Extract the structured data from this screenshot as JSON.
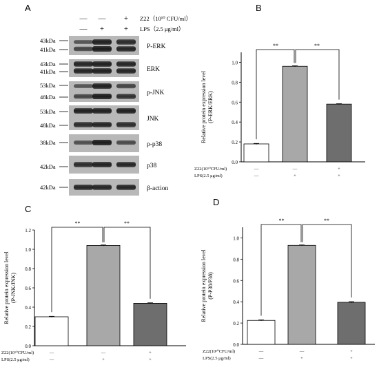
{
  "panel_labels": [
    "A",
    "B",
    "C",
    "D"
  ],
  "blot_panel": {
    "header": {
      "row1_label": "Z22（10¹⁰ CFU/ml）",
      "row2_label": "LPS（2.5 μg/ml）",
      "row1_signs": [
        "—",
        "—",
        "+"
      ],
      "row2_signs": [
        "—",
        "+",
        "+"
      ]
    },
    "blots": [
      {
        "name": "P-ERK",
        "markers": [
          "43kDa",
          "41kDa"
        ]
      },
      {
        "name": "ERK",
        "markers": [
          "43kDa",
          "41kDa"
        ]
      },
      {
        "name": "p-JNK",
        "markers": [
          "53kDa",
          "48kDa"
        ]
      },
      {
        "name": "JNK",
        "markers": [
          "53kDa",
          "48kDa"
        ]
      },
      {
        "name": "p-p38",
        "markers": [
          "38kDa"
        ]
      },
      {
        "name": "p38",
        "markers": [
          "42kDa"
        ]
      },
      {
        "name": "β-action",
        "markers": [
          "42kDa"
        ]
      }
    ]
  },
  "chart_data": [
    {
      "panel": "B",
      "type": "bar",
      "ylabel": "Relative protein expression level (P-ERK/ERK)",
      "ylim": [
        0,
        1.1
      ],
      "yticks": [
        "0.0",
        "0.2",
        "0.4",
        "0.6",
        "0.8",
        "1.0"
      ],
      "values": [
        0.18,
        0.96,
        0.58
      ],
      "errors": [
        0.005,
        0.005,
        0.004
      ],
      "bar_colors": [
        "#ffffff",
        "#a8a8a8",
        "#6e6e6e"
      ],
      "significance": [
        "**",
        "**"
      ],
      "condition_labels": [
        "Z22(10¹⁰CFU/ml)",
        "LPS(2.5 μg/ml)"
      ],
      "z22_signs": [
        "—",
        "—",
        "+"
      ],
      "lps_signs": [
        "—",
        "+",
        "+"
      ]
    },
    {
      "panel": "C",
      "type": "bar",
      "ylabel": "Relative protein expression level (P-JNK/JNK)",
      "ylim": [
        0,
        1.2
      ],
      "yticks": [
        "0.0",
        "0.2",
        "0.4",
        "0.6",
        "0.8",
        "1.0",
        "1.2"
      ],
      "values": [
        0.3,
        1.04,
        0.44
      ],
      "errors": [
        0.005,
        0.005,
        0.005
      ],
      "bar_colors": [
        "#ffffff",
        "#a8a8a8",
        "#6e6e6e"
      ],
      "significance": [
        "**",
        "**"
      ],
      "condition_labels": [
        "Z22(10¹⁰CFU/ml)",
        "LPS(2.5 μg/ml)"
      ],
      "z22_signs": [
        "—",
        "—",
        "+"
      ],
      "lps_signs": [
        "—",
        "+",
        "+"
      ]
    },
    {
      "panel": "D",
      "type": "bar",
      "ylabel": "Relative protein expression level (P-P38/P38)",
      "ylim": [
        0,
        1.1
      ],
      "yticks": [
        "0.0",
        "0.2",
        "0.4",
        "0.6",
        "0.8",
        "1.0"
      ],
      "values": [
        0.225,
        0.93,
        0.395
      ],
      "errors": [
        0.005,
        0.004,
        0.006
      ],
      "bar_colors": [
        "#ffffff",
        "#a8a8a8",
        "#6e6e6e"
      ],
      "significance": [
        "**",
        "**"
      ],
      "condition_labels": [
        "Z22(10¹⁰CFU/ml)",
        "LPS(2.5 μg/ml)"
      ],
      "z22_signs": [
        "—",
        "—",
        "+"
      ],
      "lps_signs": [
        "—",
        "+",
        "+"
      ]
    }
  ]
}
